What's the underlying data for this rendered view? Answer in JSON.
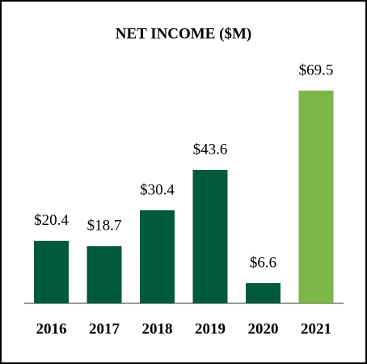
{
  "chart_data": {
    "type": "bar",
    "title": "NET INCOME ($M)",
    "categories": [
      "2016",
      "2017",
      "2018",
      "2019",
      "2020",
      "2021"
    ],
    "values": [
      20.4,
      18.7,
      30.4,
      43.6,
      6.6,
      69.5
    ],
    "value_labels": [
      "$20.4",
      "$18.7",
      "$30.4",
      "$43.6",
      "$6.6",
      "$69.5"
    ],
    "colors": [
      "#005a3c",
      "#005a3c",
      "#005a3c",
      "#005a3c",
      "#005a3c",
      "#7ab648"
    ]
  }
}
